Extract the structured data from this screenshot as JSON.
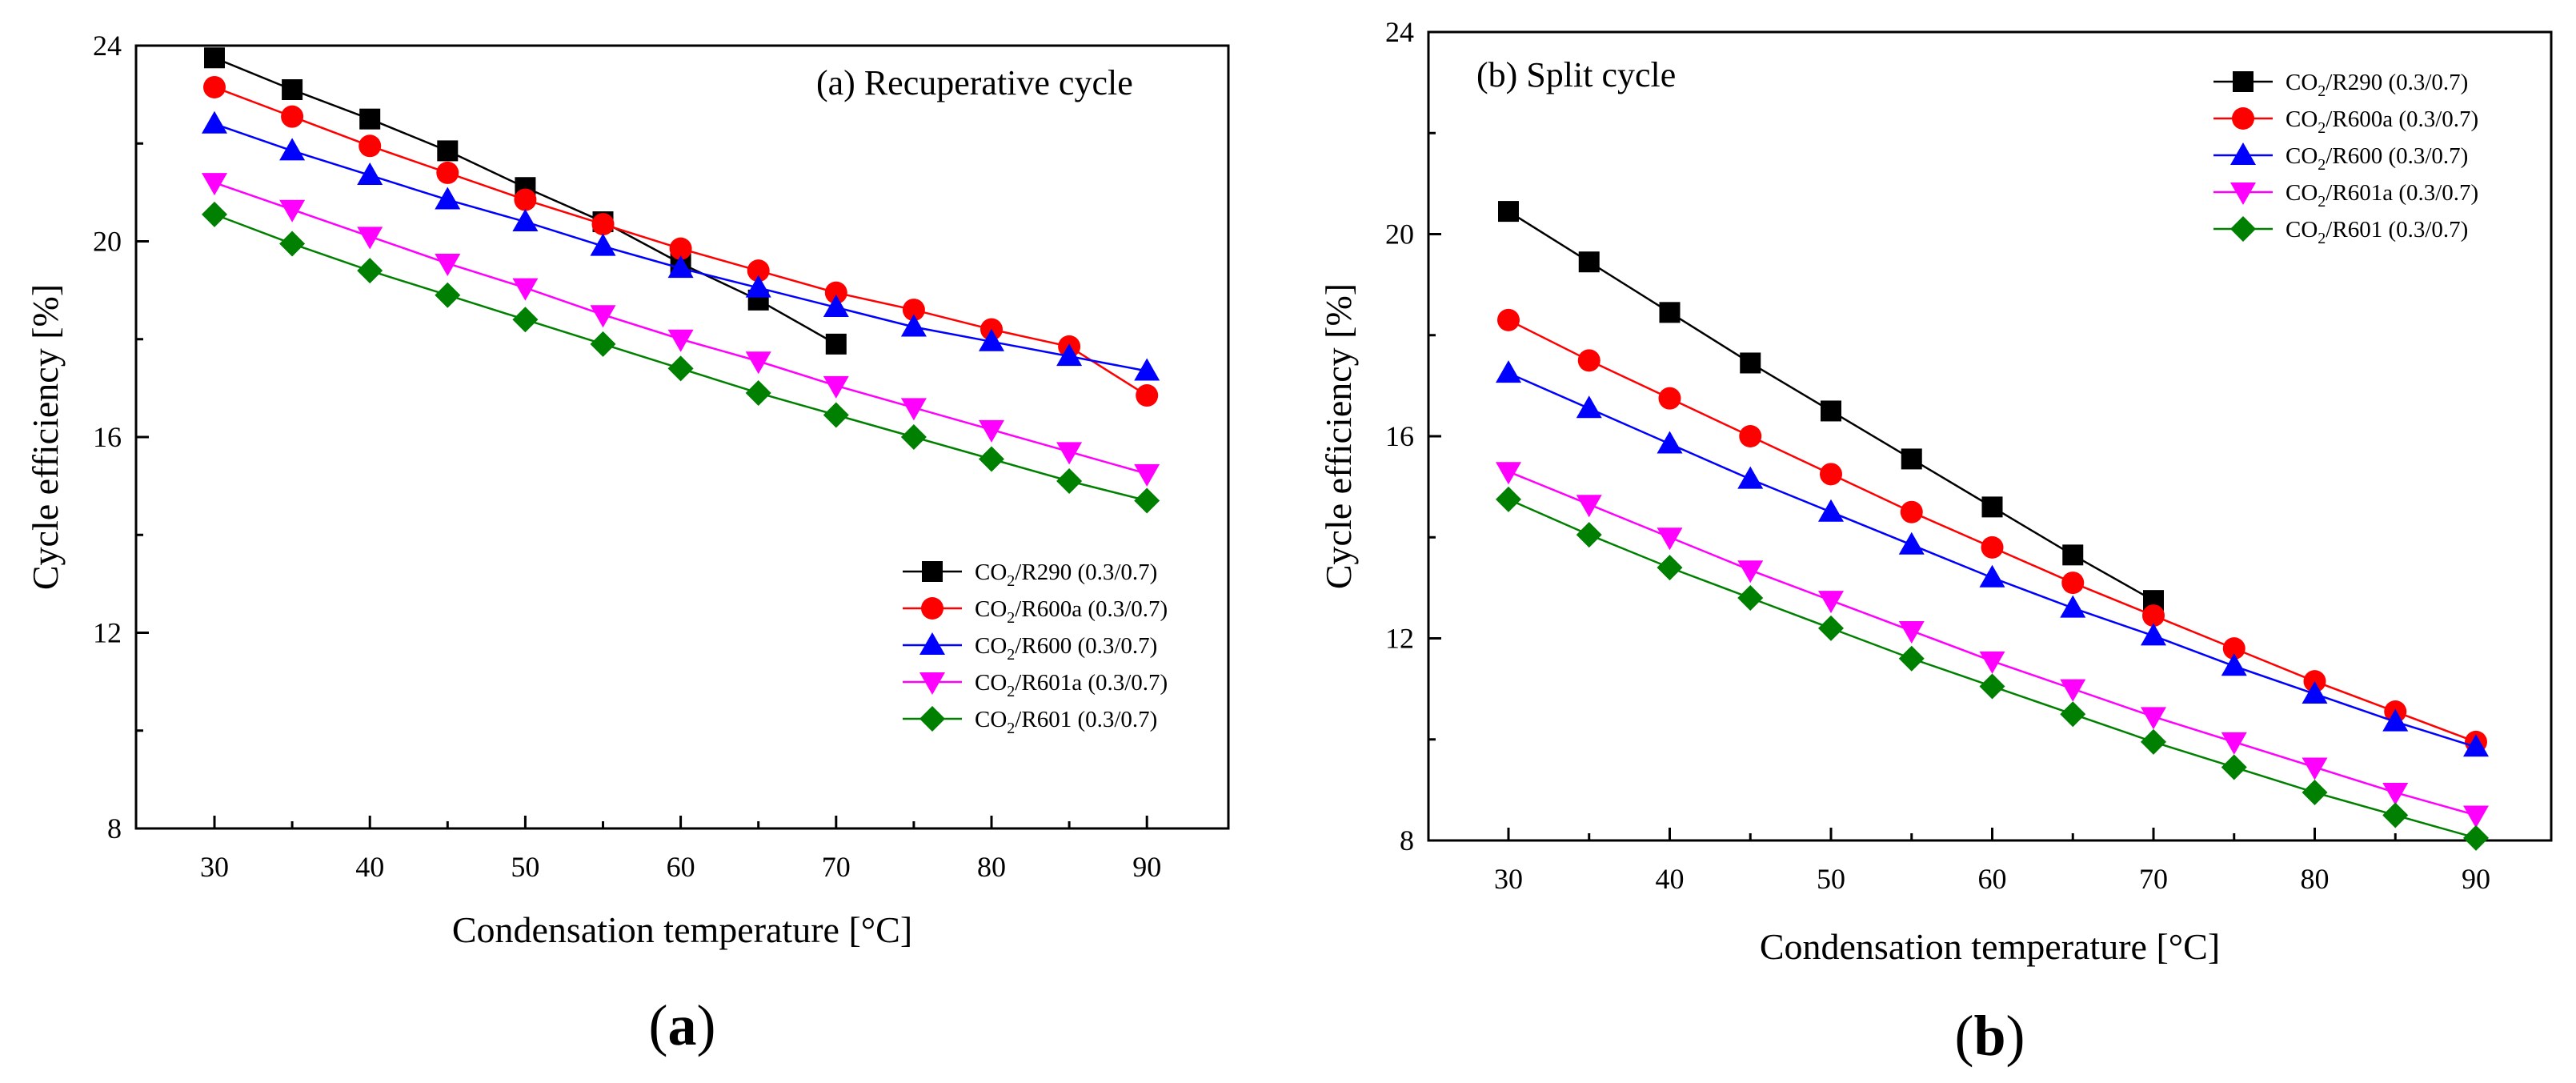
{
  "panels": [
    {
      "label_prefix": "(",
      "label_letter": "a",
      "label_suffix": ")"
    },
    {
      "label_prefix": "(",
      "label_letter": "b",
      "label_suffix": ")"
    }
  ],
  "chart_data": [
    {
      "type": "line",
      "title": "(a) Recuperative cycle",
      "xlabel": "Condensation temperature [°C]",
      "ylabel": "Cycle efficiency [%]",
      "xlim": [
        25,
        95
      ],
      "ylim": [
        8,
        24
      ],
      "xticks": [
        30,
        40,
        50,
        60,
        70,
        80,
        90
      ],
      "yticks": [
        8,
        12,
        16,
        20,
        24
      ],
      "legend_position": "lower-right",
      "grid": false,
      "series": [
        {
          "name": "CO2/R290 (0.3/0.7)",
          "formula_base": "CO",
          "formula_sub": "2",
          "formula_rest": "/R290 (0.3/0.7)",
          "color": "#000000",
          "marker": "square",
          "x": [
            30,
            35,
            40,
            45,
            50,
            55,
            60,
            65,
            70
          ],
          "y": [
            23.75,
            23.1,
            22.5,
            21.85,
            21.1,
            20.4,
            19.55,
            18.8,
            17.9
          ]
        },
        {
          "name": "CO2/R600a (0.3/0.7)",
          "formula_base": "CO",
          "formula_sub": "2",
          "formula_rest": "/R600a (0.3/0.7)",
          "color": "#ff0000",
          "marker": "circle",
          "x": [
            30,
            35,
            40,
            45,
            50,
            55,
            60,
            65,
            70,
            75,
            80,
            85,
            90
          ],
          "y": [
            23.15,
            22.55,
            21.95,
            21.4,
            20.85,
            20.35,
            19.85,
            19.4,
            18.95,
            18.6,
            18.2,
            17.85,
            16.85
          ]
        },
        {
          "name": "CO2/R600 (0.3/0.7)",
          "formula_base": "CO",
          "formula_sub": "2",
          "formula_rest": "/R600 (0.3/0.7)",
          "color": "#0000ff",
          "marker": "triangle-up",
          "x": [
            30,
            35,
            40,
            45,
            50,
            55,
            60,
            65,
            70,
            75,
            80,
            85,
            90
          ],
          "y": [
            22.4,
            21.85,
            21.35,
            20.85,
            20.4,
            19.9,
            19.45,
            19.05,
            18.65,
            18.25,
            17.95,
            17.65,
            17.35
          ]
        },
        {
          "name": "CO2/R601a (0.3/0.7)",
          "formula_base": "CO",
          "formula_sub": "2",
          "formula_rest": "/R601a (0.3/0.7)",
          "color": "#ff00ff",
          "marker": "triangle-down",
          "x": [
            30,
            35,
            40,
            45,
            50,
            55,
            60,
            65,
            70,
            75,
            80,
            85,
            90
          ],
          "y": [
            21.2,
            20.65,
            20.1,
            19.55,
            19.05,
            18.5,
            18.0,
            17.55,
            17.05,
            16.6,
            16.15,
            15.7,
            15.25
          ]
        },
        {
          "name": "CO2/R601 (0.3/0.7)",
          "formula_base": "CO",
          "formula_sub": "2",
          "formula_rest": "/R601 (0.3/0.7)",
          "color": "#008000",
          "marker": "diamond",
          "x": [
            30,
            35,
            40,
            45,
            50,
            55,
            60,
            65,
            70,
            75,
            80,
            85,
            90
          ],
          "y": [
            20.55,
            19.95,
            19.4,
            18.9,
            18.4,
            17.9,
            17.4,
            16.9,
            16.45,
            16.0,
            15.55,
            15.1,
            14.7
          ]
        }
      ]
    },
    {
      "type": "line",
      "title": "(b) Split cycle",
      "xlabel": "Condensation temperature [°C]",
      "ylabel": "Cycle efficiency [%]",
      "xlim": [
        25,
        95
      ],
      "ylim": [
        8,
        24
      ],
      "xticks": [
        30,
        40,
        50,
        60,
        70,
        80,
        90
      ],
      "yticks": [
        8,
        12,
        16,
        20,
        24
      ],
      "legend_position": "top-right",
      "grid": false,
      "series": [
        {
          "name": "CO2/R290 (0.3/0.7)",
          "formula_base": "CO",
          "formula_sub": "2",
          "formula_rest": "/R290 (0.3/0.7)",
          "color": "#000000",
          "marker": "square",
          "x": [
            30,
            35,
            40,
            45,
            50,
            55,
            60,
            65,
            70
          ],
          "y": [
            20.45,
            19.45,
            18.45,
            17.45,
            16.5,
            15.55,
            14.6,
            13.65,
            12.75
          ]
        },
        {
          "name": "CO2/R600a (0.3/0.7)",
          "formula_base": "CO",
          "formula_sub": "2",
          "formula_rest": "/R600a (0.3/0.7)",
          "color": "#ff0000",
          "marker": "circle",
          "x": [
            30,
            35,
            40,
            45,
            50,
            55,
            60,
            65,
            70,
            75,
            80,
            85,
            90
          ],
          "y": [
            18.3,
            17.5,
            16.75,
            16.0,
            15.25,
            14.5,
            13.8,
            13.1,
            12.45,
            11.8,
            11.15,
            10.55,
            9.95
          ]
        },
        {
          "name": "CO2/R600 (0.3/0.7)",
          "formula_base": "CO",
          "formula_sub": "2",
          "formula_rest": "/R600 (0.3/0.7)",
          "color": "#0000ff",
          "marker": "triangle-up",
          "x": [
            30,
            35,
            40,
            45,
            50,
            55,
            60,
            65,
            70,
            75,
            80,
            85,
            90
          ],
          "y": [
            17.25,
            16.55,
            15.85,
            15.15,
            14.5,
            13.85,
            13.2,
            12.6,
            12.05,
            11.45,
            10.9,
            10.35,
            9.85
          ]
        },
        {
          "name": "CO2/R601a (0.3/0.7)",
          "formula_base": "CO",
          "formula_sub": "2",
          "formula_rest": "/R601a (0.3/0.7)",
          "color": "#ff00ff",
          "marker": "triangle-down",
          "x": [
            30,
            35,
            40,
            45,
            50,
            55,
            60,
            65,
            70,
            75,
            80,
            85,
            90
          ],
          "y": [
            15.3,
            14.65,
            14.0,
            13.35,
            12.75,
            12.15,
            11.55,
            11.0,
            10.45,
            9.95,
            9.45,
            8.95,
            8.5
          ]
        },
        {
          "name": "CO2/R601 (0.3/0.7)",
          "formula_base": "CO",
          "formula_sub": "2",
          "formula_rest": "/R601 (0.3/0.7)",
          "color": "#008000",
          "marker": "diamond",
          "x": [
            30,
            35,
            40,
            45,
            50,
            55,
            60,
            65,
            70,
            75,
            80,
            85,
            90
          ],
          "y": [
            14.75,
            14.05,
            13.4,
            12.8,
            12.2,
            11.6,
            11.05,
            10.5,
            9.95,
            9.45,
            8.95,
            8.5,
            8.05
          ]
        }
      ]
    }
  ]
}
